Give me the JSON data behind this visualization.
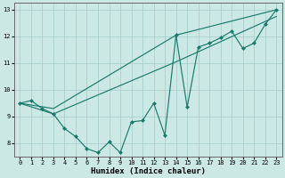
{
  "xlabel": "Humidex (Indice chaleur)",
  "ylabel": "",
  "xlim": [
    -0.5,
    23.5
  ],
  "ylim": [
    7.5,
    13.25
  ],
  "xticks": [
    0,
    1,
    2,
    3,
    4,
    5,
    6,
    7,
    8,
    9,
    10,
    11,
    12,
    13,
    14,
    15,
    16,
    17,
    18,
    19,
    20,
    21,
    22,
    23
  ],
  "yticks": [
    8,
    9,
    10,
    11,
    12,
    13
  ],
  "line_color": "#1a7a6e",
  "bg_color": "#cce8e5",
  "grid_color": "#aacfcc",
  "line1_x": [
    0,
    1,
    2,
    3,
    4,
    5,
    6,
    7,
    8,
    9,
    10,
    11,
    12,
    13,
    14,
    15,
    16,
    17,
    18,
    19,
    20,
    21,
    22,
    23
  ],
  "line1_y": [
    9.5,
    9.6,
    9.3,
    9.1,
    8.55,
    8.25,
    7.8,
    7.65,
    8.05,
    7.65,
    8.8,
    8.85,
    9.5,
    8.3,
    12.05,
    9.35,
    11.6,
    11.75,
    11.95,
    12.2,
    11.55,
    11.75,
    12.45,
    13.0
  ],
  "line2_x": [
    0,
    3,
    14,
    23
  ],
  "line2_y": [
    9.5,
    9.3,
    12.05,
    13.0
  ],
  "line3_x": [
    0,
    3,
    14,
    23
  ],
  "line3_y": [
    9.5,
    9.1,
    11.05,
    12.75
  ]
}
